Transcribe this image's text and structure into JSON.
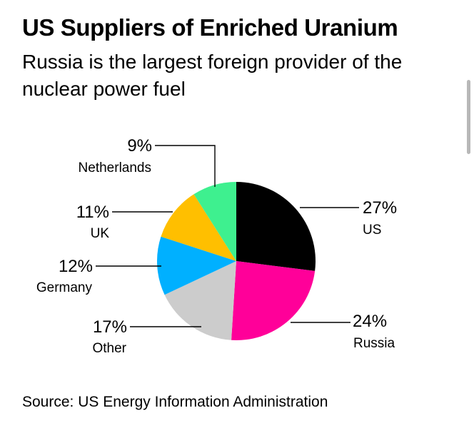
{
  "title": "US Suppliers of Enriched Uranium",
  "subtitle": "Russia is the largest foreign provider of the nuclear power fuel",
  "source": "Source: US Energy Information Administration",
  "chart_data": {
    "type": "pie",
    "title": "US Suppliers of Enriched Uranium",
    "subtitle": "Russia is the largest foreign provider of the nuclear power fuel",
    "start": "12 o'clock, clockwise",
    "slices": [
      {
        "label": "US",
        "value": 27,
        "display": "27%",
        "color": "#000000"
      },
      {
        "label": "Russia",
        "value": 24,
        "display": "24%",
        "color": "#ff0099"
      },
      {
        "label": "Other",
        "value": 17,
        "display": "17%",
        "color": "#cccccc"
      },
      {
        "label": "Germany",
        "value": 12,
        "display": "12%",
        "color": "#00b0ff"
      },
      {
        "label": "UK",
        "value": 11,
        "display": "11%",
        "color": "#ffbf00"
      },
      {
        "label": "Netherlands",
        "value": 9,
        "display": "9%",
        "color": "#3ef08f"
      }
    ]
  }
}
